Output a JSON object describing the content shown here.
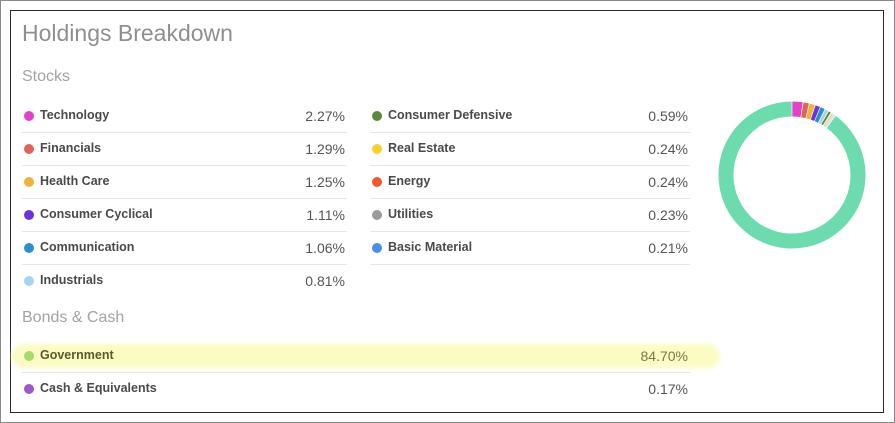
{
  "panel": {
    "title": "Holdings Breakdown"
  },
  "stocks": {
    "heading": "Stocks",
    "left": [
      {
        "label": "Technology",
        "value": "2.27%",
        "color": "#e242c8"
      },
      {
        "label": "Financials",
        "value": "1.29%",
        "color": "#e06559"
      },
      {
        "label": "Health Care",
        "value": "1.25%",
        "color": "#f0b23c"
      },
      {
        "label": "Consumer Cyclical",
        "value": "1.11%",
        "color": "#6a33dc"
      },
      {
        "label": "Communication",
        "value": "1.06%",
        "color": "#2e8fcf"
      },
      {
        "label": "Industrials",
        "value": "0.81%",
        "color": "#a8d4f4"
      }
    ],
    "right": [
      {
        "label": "Consumer Defensive",
        "value": "0.59%",
        "color": "#5d8a3a"
      },
      {
        "label": "Real Estate",
        "value": "0.24%",
        "color": "#f5d12f"
      },
      {
        "label": "Energy",
        "value": "0.24%",
        "color": "#ef5a2e"
      },
      {
        "label": "Utilities",
        "value": "0.23%",
        "color": "#9a9a9a"
      },
      {
        "label": "Basic Material",
        "value": "0.21%",
        "color": "#4a8ee6"
      }
    ]
  },
  "bonds": {
    "heading": "Bonds & Cash",
    "items": [
      {
        "label": "Government",
        "value": "84.70%",
        "color": "#a6dd6a"
      },
      {
        "label": "Cash & Equivalents",
        "value": "0.17%",
        "color": "#9b59c9"
      }
    ]
  },
  "highlight_color": "#fbfcc3",
  "donut_main_color": "#6cdcae"
}
